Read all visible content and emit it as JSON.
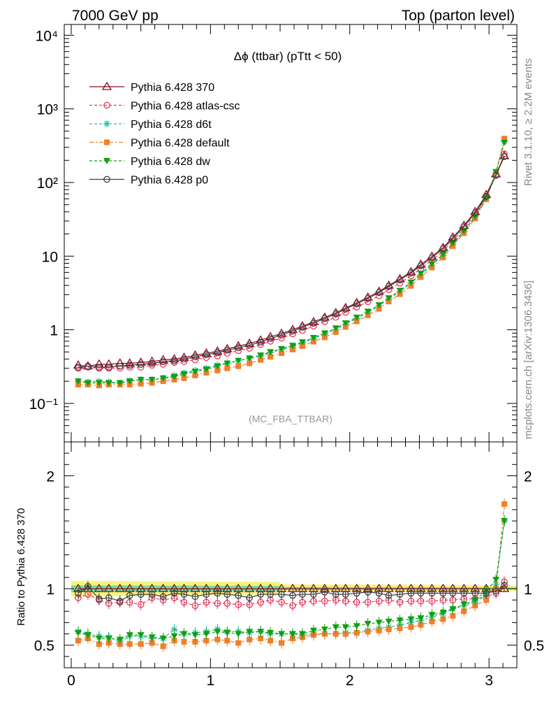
{
  "header": {
    "left": "7000 GeV pp",
    "right": "Top (parton level)"
  },
  "side_labels": {
    "top": "Rivet 3.1.10, ≥ 2.2M events",
    "bottom": "mcplots.cern.ch [arXiv:1306.3436]"
  },
  "main_plot": {
    "title": "Δϕ (ttbar) (pTtt < 50)",
    "watermark": "(MC_FBA_TTBAR)"
  },
  "ratio_plot": {
    "ylabel": "Ratio to Pythia 6.428 370"
  },
  "colors": {
    "p370": "#8b0a1e",
    "atlas": "#e8365b",
    "d6t": "#20c0a0",
    "default": "#f07f2a",
    "dw": "#10a010",
    "p0": "#404040",
    "band_yellow": "#f5f57a",
    "band_green": "#6fe0a0"
  },
  "chart_data": [
    {
      "type": "line",
      "log_y": true,
      "xlim": [
        -0.05,
        3.2
      ],
      "ylim": [
        0.03,
        14000
      ],
      "y_ticks": [
        "10⁻¹",
        "1",
        "10",
        "10²",
        "10³",
        "10⁴"
      ],
      "x": [
        0.05,
        0.12,
        0.2,
        0.27,
        0.35,
        0.42,
        0.5,
        0.58,
        0.66,
        0.74,
        0.81,
        0.89,
        0.97,
        1.05,
        1.12,
        1.2,
        1.28,
        1.36,
        1.43,
        1.51,
        1.59,
        1.66,
        1.74,
        1.82,
        1.9,
        1.97,
        2.05,
        2.13,
        2.21,
        2.28,
        2.36,
        2.44,
        2.51,
        2.59,
        2.67,
        2.74,
        2.82,
        2.9,
        2.98,
        3.05,
        3.11
      ],
      "series": [
        {
          "name": "Pythia 6.428 370",
          "key": "p370",
          "values": [
            0.33,
            0.32,
            0.34,
            0.34,
            0.35,
            0.35,
            0.36,
            0.37,
            0.39,
            0.4,
            0.42,
            0.45,
            0.48,
            0.51,
            0.55,
            0.6,
            0.65,
            0.72,
            0.8,
            0.89,
            1.0,
            1.12,
            1.28,
            1.47,
            1.7,
            1.98,
            2.32,
            2.75,
            3.3,
            4.0,
            4.9,
            6.1,
            7.7,
            9.9,
            13,
            18,
            26,
            40,
            68,
            130,
            230
          ]
        },
        {
          "name": "Pythia 6.428 atlas-csc",
          "key": "atlas",
          "values": [
            0.3,
            0.31,
            0.3,
            0.3,
            0.3,
            0.31,
            0.31,
            0.33,
            0.34,
            0.36,
            0.37,
            0.39,
            0.42,
            0.44,
            0.48,
            0.52,
            0.56,
            0.63,
            0.7,
            0.77,
            0.88,
            0.98,
            1.12,
            1.29,
            1.48,
            1.73,
            2.03,
            2.4,
            2.9,
            3.5,
            4.3,
            5.4,
            6.8,
            8.8,
            11.7,
            16.2,
            23.5,
            36.5,
            63,
            126,
            245
          ]
        },
        {
          "name": "Pythia 6.428 d6t",
          "key": "d6t",
          "values": [
            0.2,
            0.195,
            0.2,
            0.195,
            0.19,
            0.205,
            0.21,
            0.21,
            0.22,
            0.24,
            0.26,
            0.28,
            0.3,
            0.33,
            0.35,
            0.38,
            0.41,
            0.44,
            0.49,
            0.54,
            0.6,
            0.66,
            0.76,
            0.87,
            1.01,
            1.19,
            1.42,
            1.71,
            2.11,
            2.62,
            3.3,
            4.3,
            5.6,
            7.5,
            10.2,
            14.5,
            21.5,
            34,
            61,
            135,
            360
          ]
        },
        {
          "name": "Pythia 6.428 default",
          "key": "default",
          "values": [
            0.18,
            0.18,
            0.175,
            0.18,
            0.18,
            0.18,
            0.185,
            0.19,
            0.2,
            0.21,
            0.22,
            0.24,
            0.26,
            0.28,
            0.3,
            0.32,
            0.35,
            0.39,
            0.43,
            0.48,
            0.54,
            0.6,
            0.69,
            0.79,
            0.93,
            1.09,
            1.3,
            1.57,
            1.93,
            2.42,
            3.05,
            3.95,
            5.2,
            7.0,
            9.6,
            13.7,
            20.5,
            32.5,
            59,
            138,
            395
          ]
        },
        {
          "name": "Pythia 6.428 dw",
          "key": "dw",
          "values": [
            0.2,
            0.19,
            0.19,
            0.19,
            0.19,
            0.2,
            0.21,
            0.21,
            0.22,
            0.23,
            0.25,
            0.27,
            0.29,
            0.32,
            0.35,
            0.38,
            0.41,
            0.45,
            0.5,
            0.55,
            0.61,
            0.68,
            0.78,
            0.9,
            1.05,
            1.23,
            1.47,
            1.77,
            2.17,
            2.7,
            3.4,
            4.4,
            5.8,
            7.8,
            10.6,
            15.0,
            22.0,
            34.5,
            62,
            140,
            350
          ]
        },
        {
          "name": "Pythia 6.428 p0",
          "key": "p0",
          "values": [
            0.31,
            0.32,
            0.31,
            0.31,
            0.32,
            0.33,
            0.34,
            0.35,
            0.37,
            0.38,
            0.4,
            0.43,
            0.46,
            0.49,
            0.53,
            0.57,
            0.62,
            0.68,
            0.76,
            0.85,
            0.96,
            1.08,
            1.23,
            1.42,
            1.64,
            1.91,
            2.25,
            2.66,
            3.2,
            3.88,
            4.75,
            5.9,
            7.4,
            9.5,
            12.6,
            17.3,
            25,
            38.5,
            65,
            125,
            225
          ]
        }
      ]
    },
    {
      "type": "line",
      "xlim": [
        -0.05,
        3.2
      ],
      "ylim": [
        0.3,
        2.3
      ],
      "x_ticks": [
        "0",
        "1",
        "2",
        "3"
      ],
      "y_ticks": [
        "0.5",
        "1",
        "2"
      ],
      "ylabel": "Ratio to Pythia 6.428 370",
      "series": [
        {
          "key": "p370",
          "values": [
            1,
            1,
            1,
            1,
            1,
            1,
            1,
            1,
            1,
            1,
            1,
            1,
            1,
            1,
            1,
            1,
            1,
            1,
            1,
            1,
            1,
            1,
            1,
            1,
            1,
            1,
            1,
            1,
            1,
            1,
            1,
            1,
            1,
            1,
            1,
            1,
            1,
            1,
            1,
            1,
            1
          ]
        },
        {
          "key": "atlas",
          "values": [
            0.92,
            0.95,
            0.9,
            0.87,
            0.88,
            0.88,
            0.86,
            0.92,
            0.9,
            0.92,
            0.88,
            0.85,
            0.88,
            0.87,
            0.87,
            0.86,
            0.86,
            0.88,
            0.9,
            0.88,
            0.85,
            0.88,
            0.89,
            0.89,
            0.9,
            0.89,
            0.88,
            0.88,
            0.89,
            0.9,
            0.88,
            0.89,
            0.89,
            0.89,
            0.9,
            0.9,
            0.91,
            0.91,
            0.93,
            0.96,
            1.06
          ]
        },
        {
          "key": "d6t",
          "values": [
            0.62,
            0.6,
            0.58,
            0.57,
            0.53,
            0.58,
            0.58,
            0.56,
            0.56,
            0.64,
            0.6,
            0.61,
            0.62,
            0.64,
            0.62,
            0.62,
            0.61,
            0.62,
            0.6,
            0.6,
            0.6,
            0.59,
            0.6,
            0.6,
            0.6,
            0.61,
            0.61,
            0.63,
            0.65,
            0.66,
            0.68,
            0.7,
            0.72,
            0.75,
            0.78,
            0.82,
            0.85,
            0.88,
            0.94,
            1.04,
            1.6
          ]
        },
        {
          "key": "default",
          "values": [
            0.54,
            0.56,
            0.51,
            0.52,
            0.51,
            0.51,
            0.51,
            0.52,
            0.49,
            0.54,
            0.53,
            0.53,
            0.54,
            0.55,
            0.54,
            0.52,
            0.55,
            0.56,
            0.54,
            0.52,
            0.56,
            0.57,
            0.59,
            0.6,
            0.6,
            0.6,
            0.61,
            0.62,
            0.63,
            0.64,
            0.65,
            0.66,
            0.68,
            0.71,
            0.73,
            0.76,
            0.8,
            0.85,
            0.9,
            1.0,
            1.75
          ]
        },
        {
          "key": "dw",
          "values": [
            0.61,
            0.59,
            0.56,
            0.56,
            0.55,
            0.59,
            0.59,
            0.57,
            0.56,
            0.58,
            0.6,
            0.59,
            0.6,
            0.62,
            0.61,
            0.6,
            0.62,
            0.62,
            0.61,
            0.6,
            0.6,
            0.6,
            0.63,
            0.64,
            0.66,
            0.66,
            0.67,
            0.69,
            0.7,
            0.71,
            0.72,
            0.73,
            0.74,
            0.77,
            0.79,
            0.82,
            0.86,
            0.9,
            0.98,
            1.08,
            1.6
          ]
        },
        {
          "key": "p0",
          "values": [
            0.96,
            1.02,
            0.91,
            0.92,
            0.89,
            0.94,
            0.95,
            0.95,
            0.93,
            0.96,
            0.95,
            0.93,
            0.95,
            0.96,
            0.95,
            0.94,
            0.92,
            0.95,
            0.95,
            0.95,
            0.94,
            0.95,
            0.95,
            0.97,
            0.95,
            0.95,
            0.96,
            0.97,
            0.96,
            0.94,
            0.95,
            0.96,
            0.96,
            0.96,
            0.96,
            0.96,
            0.96,
            0.96,
            0.96,
            0.98,
            1.03
          ]
        }
      ]
    }
  ]
}
